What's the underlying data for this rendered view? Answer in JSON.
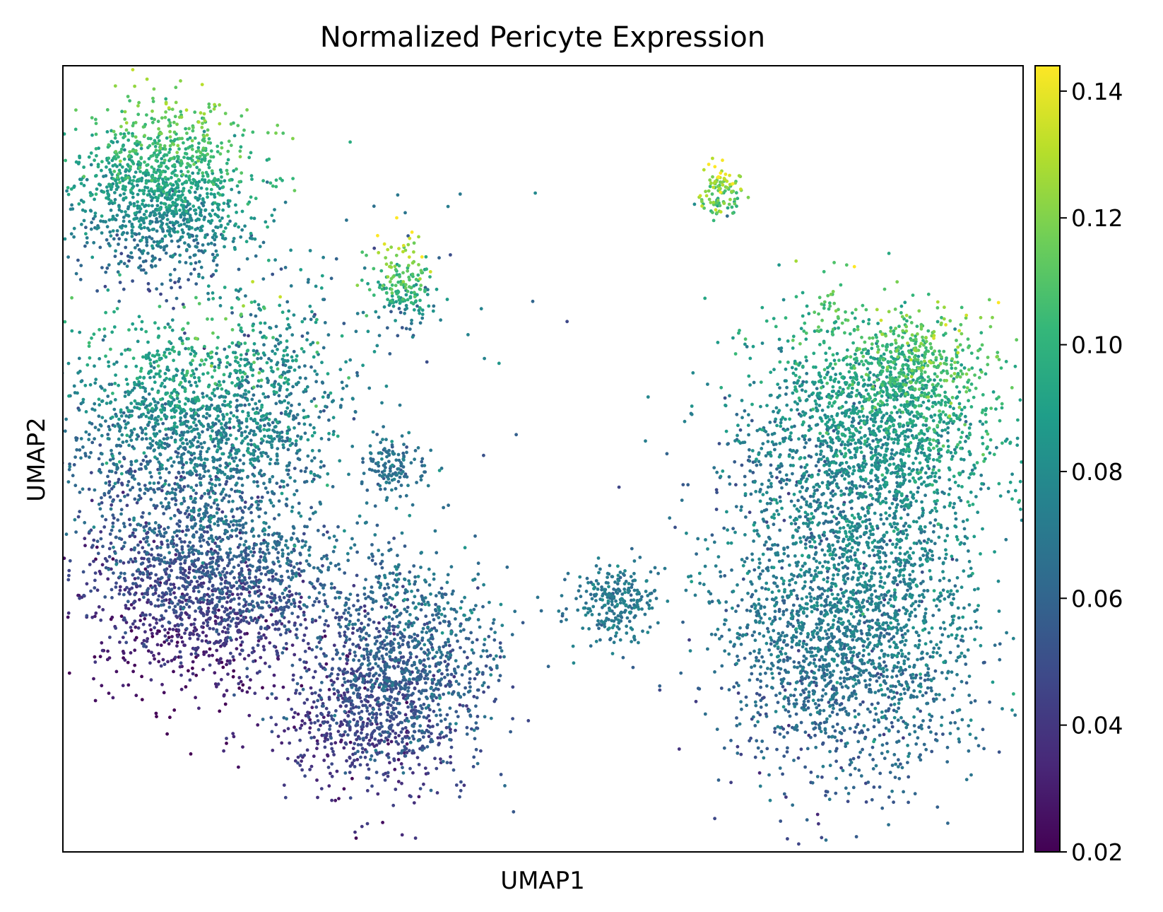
{
  "chart_data": {
    "type": "scatter",
    "title": "Normalized Pericyte Expression",
    "xlabel": "UMAP1",
    "ylabel": "UMAP2",
    "xlim": [
      0,
      100
    ],
    "ylim": [
      0,
      100
    ],
    "x_ticks_shown": false,
    "y_ticks_shown": false,
    "grid": false,
    "colormap": "viridis",
    "colormap_stops": [
      "#440154",
      "#482878",
      "#3e4989",
      "#31688e",
      "#26828e",
      "#1f9e89",
      "#35b779",
      "#6ece58",
      "#b5de2b",
      "#fde725"
    ],
    "colorbar": {
      "min": 0.02,
      "max": 0.144,
      "ticks": [
        0.02,
        0.04,
        0.06,
        0.08,
        0.1,
        0.12,
        0.14
      ],
      "tick_labels": [
        "0.02",
        "0.04",
        "0.06",
        "0.08",
        "0.10",
        "0.12",
        "0.14"
      ],
      "placement": "right"
    },
    "clusters": [
      {
        "center": [
          10.5,
          84
        ],
        "spread": [
          4.5,
          5.5
        ],
        "value": 0.088,
        "value_sd": 0.008,
        "n": 1300,
        "value_gradient": [
          0.004,
          0.028
        ]
      },
      {
        "center": [
          12.5,
          54
        ],
        "spread": [
          6.5,
          7
        ],
        "value": 0.075,
        "value_sd": 0.01,
        "n": 1400,
        "value_gradient": [
          0.006,
          0.028
        ]
      },
      {
        "center": [
          15.5,
          34
        ],
        "spread": [
          6.5,
          6.5
        ],
        "value": 0.05,
        "value_sd": 0.009,
        "n": 1700,
        "value_gradient": [
          0.007,
          0.022
        ]
      },
      {
        "center": [
          22,
          58
        ],
        "spread": [
          4,
          7
        ],
        "value": 0.072,
        "value_sd": 0.009,
        "n": 400,
        "value_gradient": [
          0,
          0.01
        ]
      },
      {
        "center": [
          35.5,
          72
        ],
        "spread": [
          1.5,
          3
        ],
        "value": 0.1,
        "value_sd": 0.01,
        "n": 180,
        "value_gradient": [
          0,
          0.035
        ]
      },
      {
        "center": [
          34.5,
          49
        ],
        "spread": [
          1.4,
          1.9
        ],
        "value": 0.065,
        "value_sd": 0.006,
        "n": 130,
        "value_gradient": [
          0,
          0
        ]
      },
      {
        "center": [
          35.5,
          23
        ],
        "spread": [
          4.5,
          7
        ],
        "value": 0.055,
        "value_sd": 0.009,
        "n": 1300,
        "value_gradient": [
          0.006,
          0.012
        ]
      },
      {
        "center": [
          29,
          16
        ],
        "spread": [
          4,
          3.5
        ],
        "value": 0.045,
        "value_sd": 0.008,
        "n": 250,
        "value_gradient": [
          0.004,
          0.004
        ]
      },
      {
        "center": [
          57.5,
          32
        ],
        "spread": [
          2.3,
          2.4
        ],
        "value": 0.07,
        "value_sd": 0.006,
        "n": 260,
        "value_gradient": [
          0,
          0
        ]
      },
      {
        "center": [
          68.5,
          84
        ],
        "spread": [
          1.1,
          1.8
        ],
        "value": 0.118,
        "value_sd": 0.012,
        "n": 110,
        "value_gradient": [
          0,
          0.02
        ]
      },
      {
        "center": [
          79.5,
          69
        ],
        "spread": [
          1.4,
          2.3
        ],
        "value": 0.11,
        "value_sd": 0.006,
        "n": 35,
        "value_gradient": [
          0,
          0
        ]
      },
      {
        "center": [
          81.5,
          28
        ],
        "spread": [
          6.5,
          9.5
        ],
        "value": 0.07,
        "value_sd": 0.008,
        "n": 2200,
        "value_gradient": [
          0.004,
          0.012
        ]
      },
      {
        "center": [
          84,
          52
        ],
        "spread": [
          7,
          7.5
        ],
        "value": 0.082,
        "value_sd": 0.01,
        "n": 1800,
        "value_gradient": [
          0.012,
          0.018
        ]
      },
      {
        "center": [
          88.5,
          61
        ],
        "spread": [
          3.5,
          3.5
        ],
        "value": 0.1,
        "value_sd": 0.012,
        "n": 450,
        "value_gradient": [
          0.008,
          0.015
        ]
      },
      {
        "center": [
          53,
          30
        ],
        "spread": [
          14,
          4
        ],
        "value": 0.065,
        "value_sd": 0.008,
        "n": 25,
        "value_gradient": [
          0,
          0
        ]
      },
      {
        "center": [
          28,
          68
        ],
        "spread": [
          12,
          10
        ],
        "value": 0.07,
        "value_sd": 0.012,
        "n": 90,
        "value_gradient": [
          0,
          0
        ]
      }
    ]
  }
}
